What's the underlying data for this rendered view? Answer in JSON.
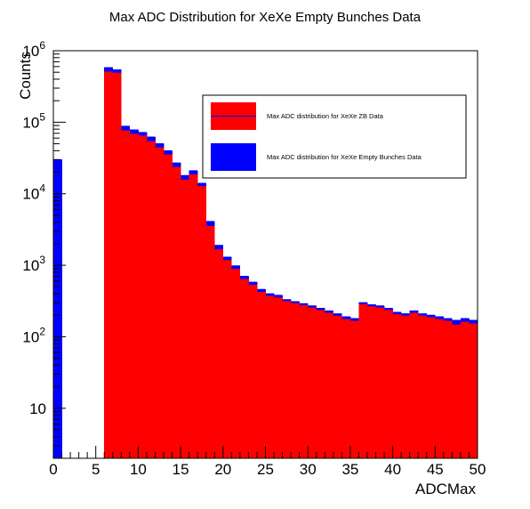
{
  "chart_data": {
    "type": "bar",
    "title": "Max ADC Distribution for XeXe Empty Bunches Data",
    "xlabel": "ADCMax",
    "ylabel": "Counts",
    "xlim": [
      0,
      50
    ],
    "ylim": [
      2,
      1000000
    ],
    "yscale": "log",
    "grid": false,
    "legend_position": "top-right",
    "x_ticks": [
      0,
      5,
      10,
      15,
      20,
      25,
      30,
      35,
      40,
      45,
      50
    ],
    "x_tick_labels": [
      "0",
      "5",
      "10",
      "15",
      "20",
      "25",
      "30",
      "35",
      "40",
      "45",
      "50"
    ],
    "y_ticks": [
      {
        "value": 10,
        "base": "10",
        "exp": ""
      },
      {
        "value": 100,
        "base": "10",
        "exp": "2"
      },
      {
        "value": 1000,
        "base": "10",
        "exp": "3"
      },
      {
        "value": 10000,
        "base": "10",
        "exp": "4"
      },
      {
        "value": 100000,
        "base": "10",
        "exp": "5"
      },
      {
        "value": 1000000,
        "base": "10",
        "exp": "6"
      }
    ],
    "bin_edges": [
      0,
      1,
      2,
      3,
      4,
      5,
      6,
      7,
      8,
      9,
      10,
      11,
      12,
      13,
      14,
      15,
      16,
      17,
      18,
      19,
      20,
      21,
      22,
      23,
      24,
      25,
      26,
      27,
      28,
      29,
      30,
      31,
      32,
      33,
      34,
      35,
      36,
      37,
      38,
      39,
      40,
      41,
      42,
      43,
      44,
      45,
      46,
      47,
      48,
      49,
      50
    ],
    "series": [
      {
        "name": "Max ADC distribution for XeXe Empty Bunches Data",
        "color": "#0000ff",
        "values": [
          30000,
          0,
          0,
          0,
          0,
          0,
          580000,
          540000,
          88000,
          78000,
          72000,
          62000,
          50000,
          40000,
          27000,
          18000,
          21000,
          14000,
          4100,
          1900,
          1300,
          980,
          700,
          580,
          460,
          400,
          380,
          330,
          310,
          290,
          270,
          250,
          230,
          210,
          190,
          180,
          300,
          280,
          270,
          250,
          220,
          210,
          230,
          210,
          200,
          190,
          180,
          170,
          180,
          170
        ]
      },
      {
        "name": "Max ADC distribution for XeXe ZB Data",
        "color": "#ff0000",
        "values": [
          0,
          0,
          0,
          0,
          0,
          0,
          520000,
          500000,
          78000,
          70000,
          66000,
          55000,
          45000,
          36000,
          24000,
          16000,
          19000,
          13000,
          3600,
          1700,
          1200,
          900,
          650,
          540,
          430,
          380,
          360,
          320,
          300,
          280,
          260,
          240,
          220,
          200,
          180,
          170,
          290,
          270,
          260,
          240,
          210,
          200,
          220,
          200,
          190,
          180,
          170,
          150,
          165,
          155
        ]
      }
    ]
  },
  "legend": [
    {
      "label": "Max ADC distribution for XeXe ZB Data",
      "color": "#ff0000"
    },
    {
      "label": "Max ADC distribution for XeXe Empty Bunches Data",
      "color": "#0000ff"
    }
  ]
}
